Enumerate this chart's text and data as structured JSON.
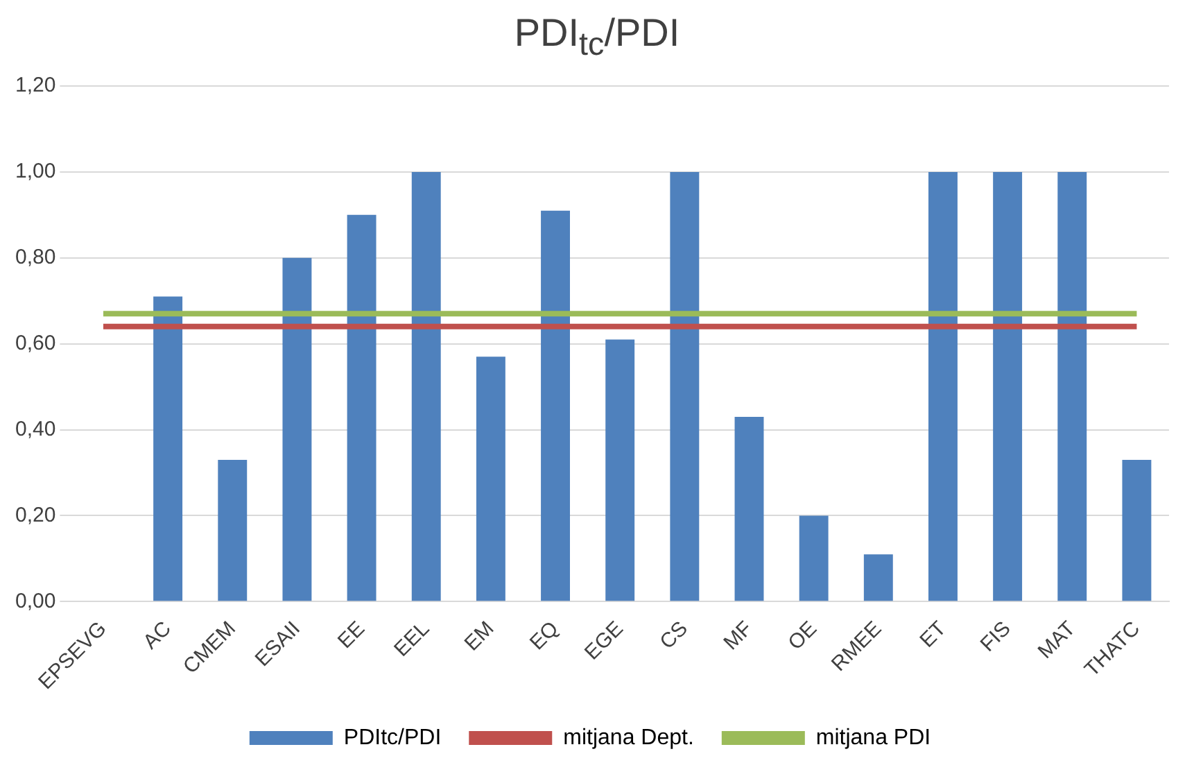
{
  "chart_data": {
    "type": "bar",
    "title": "PDI$_{tc}$/PDI",
    "categories": [
      "EPSEVG",
      "AC",
      "CMEM",
      "ESAII",
      "EE",
      "EEL",
      "EM",
      "EQ",
      "EGE",
      "CS",
      "MF",
      "OE",
      "RMEE",
      "ET",
      "FIS",
      "MAT",
      "THATC"
    ],
    "series": [
      {
        "name": "PDItc/PDI",
        "color": "#4f81bd",
        "values": [
          0,
          0.71,
          0.33,
          0.8,
          0.9,
          1.0,
          0.57,
          0.91,
          0.61,
          1.0,
          0.43,
          0.2,
          0.11,
          1.0,
          1.0,
          1.0,
          0.33
        ]
      },
      {
        "name": "mitjana Dept.",
        "type": "line",
        "color": "#c0504d",
        "values": [
          0.64,
          0.64,
          0.64,
          0.64,
          0.64,
          0.64,
          0.64,
          0.64,
          0.64,
          0.64,
          0.64,
          0.64,
          0.64,
          0.64,
          0.64,
          0.64,
          0.64
        ]
      },
      {
        "name": "mitjana PDI",
        "type": "line",
        "color": "#9bbb59",
        "values": [
          0.67,
          0.67,
          0.67,
          0.67,
          0.67,
          0.67,
          0.67,
          0.67,
          0.67,
          0.67,
          0.67,
          0.67,
          0.67,
          0.67,
          0.67,
          0.67,
          0.67
        ]
      }
    ],
    "ylim": [
      0,
      1.2
    ],
    "yticks": [
      {
        "value": 0,
        "label": "0,00"
      },
      {
        "value": 0.2,
        "label": "0,20"
      },
      {
        "value": 0.4,
        "label": "0,40"
      },
      {
        "value": 0.6,
        "label": "0,60"
      },
      {
        "value": 0.8,
        "label": "0,80"
      },
      {
        "value": 1.0,
        "label": "1,00"
      },
      {
        "value": 1.2,
        "label": "1,20"
      }
    ],
    "grid": "y",
    "legend": "bottom",
    "marker": "none"
  }
}
